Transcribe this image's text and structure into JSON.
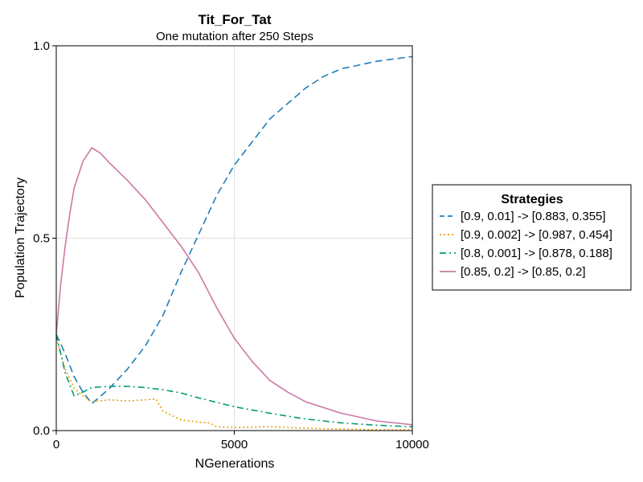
{
  "chart_data": {
    "type": "line",
    "title": "Tit_For_Tat",
    "subtitle": "One mutation after 250 Steps",
    "xlabel": "NGenerations",
    "ylabel": "Population Trajectory",
    "xlim": [
      0,
      10000
    ],
    "ylim": [
      0,
      1
    ],
    "xticks": [
      0,
      5000,
      10000
    ],
    "yticks": [
      0.0,
      0.5,
      1.0
    ],
    "xtick_labels": [
      "0",
      "5000",
      "10000"
    ],
    "ytick_labels": [
      "0.0",
      "0.5",
      "1.0"
    ],
    "grid": true,
    "legend": {
      "title": "Strategies",
      "placement": "right"
    },
    "series": [
      {
        "name": "[0.9, 0.01] -> [0.883, 0.355]",
        "color": "#1f7fb8",
        "dash": "dashed",
        "x": [
          0,
          250,
          500,
          750,
          1000,
          1250,
          1500,
          2000,
          2500,
          3000,
          3500,
          4000,
          4500,
          5000,
          5500,
          6000,
          6500,
          7000,
          7500,
          8000,
          8500,
          9000,
          9500,
          10000
        ],
        "y": [
          0.25,
          0.2,
          0.14,
          0.1,
          0.07,
          0.09,
          0.11,
          0.16,
          0.22,
          0.3,
          0.41,
          0.51,
          0.61,
          0.69,
          0.75,
          0.81,
          0.85,
          0.89,
          0.92,
          0.94,
          0.95,
          0.96,
          0.966,
          0.972
        ]
      },
      {
        "name": "[0.9, 0.002] -> [0.987, 0.454]",
        "color": "#e69f00",
        "dash": "dotted",
        "x": [
          0,
          250,
          500,
          750,
          1000,
          1500,
          2000,
          2500,
          2800,
          3000,
          3500,
          4000,
          4300,
          4500,
          5000,
          6000,
          7000,
          8000,
          9000,
          10000
        ],
        "y": [
          0.24,
          0.16,
          0.11,
          0.09,
          0.075,
          0.08,
          0.077,
          0.08,
          0.082,
          0.05,
          0.028,
          0.022,
          0.02,
          0.01,
          0.008,
          0.01,
          0.006,
          0.004,
          0.002,
          0.002
        ]
      },
      {
        "name": "[0.8, 0.001] -> [0.878, 0.188]",
        "color": "#009e73",
        "dash": "dashdot",
        "x": [
          0,
          250,
          500,
          750,
          1000,
          1500,
          2000,
          2500,
          3000,
          3500,
          4000,
          5000,
          6000,
          7000,
          8000,
          9000,
          10000
        ],
        "y": [
          0.25,
          0.15,
          0.09,
          0.1,
          0.112,
          0.115,
          0.115,
          0.112,
          0.106,
          0.098,
          0.085,
          0.062,
          0.045,
          0.03,
          0.02,
          0.014,
          0.01
        ]
      },
      {
        "name": "[0.85, 0.2] -> [0.85, 0.2]",
        "color": "#cc79a7",
        "dash": "solid",
        "x": [
          0,
          125,
          250,
          375,
          500,
          750,
          1000,
          1250,
          1500,
          2000,
          2500,
          3000,
          3500,
          4000,
          4500,
          5000,
          5500,
          6000,
          6500,
          7000,
          8000,
          9000,
          10000
        ],
        "y": [
          0.25,
          0.38,
          0.48,
          0.56,
          0.63,
          0.7,
          0.735,
          0.72,
          0.695,
          0.65,
          0.6,
          0.54,
          0.48,
          0.41,
          0.32,
          0.24,
          0.18,
          0.13,
          0.1,
          0.075,
          0.045,
          0.025,
          0.015
        ]
      }
    ]
  }
}
